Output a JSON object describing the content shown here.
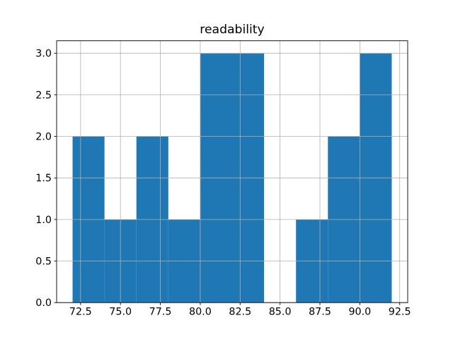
{
  "chart_data": {
    "type": "bar",
    "subtype": "histogram",
    "title": "readability",
    "xlabel": "",
    "ylabel": "",
    "bin_edges": [
      72,
      74,
      76,
      78,
      80,
      82,
      84,
      86,
      88,
      90,
      92
    ],
    "counts": [
      2,
      1,
      2,
      1,
      3,
      3,
      0,
      1,
      2,
      3
    ],
    "xticks": [
      72.5,
      75.0,
      77.5,
      80.0,
      82.5,
      85.0,
      87.5,
      90.0,
      92.5
    ],
    "xtick_labels": [
      "72.5",
      "75.0",
      "77.5",
      "80.0",
      "82.5",
      "85.0",
      "87.5",
      "90.0",
      "92.5"
    ],
    "yticks": [
      0.0,
      0.5,
      1.0,
      1.5,
      2.0,
      2.5,
      3.0
    ],
    "ytick_labels": [
      "0.0",
      "0.5",
      "1.0",
      "1.5",
      "2.0",
      "2.5",
      "3.0"
    ],
    "xlim": [
      71,
      93
    ],
    "ylim": [
      0,
      3.15
    ],
    "grid": true,
    "grid_above_bars": true,
    "legend": null,
    "colors": {
      "bar": "#1f77b4",
      "grid": "#b0b0b0",
      "spine": "#000000",
      "background": "#ffffff",
      "text": "#000000"
    }
  }
}
